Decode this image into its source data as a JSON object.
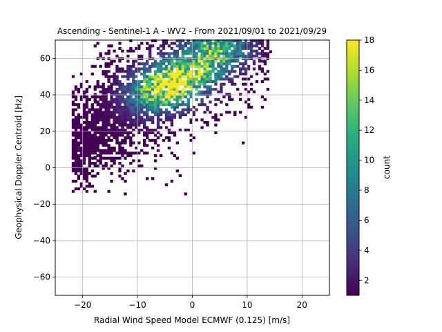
{
  "chart_data": {
    "type": "heatmap",
    "title": "Ascending - Sentinel-1 A - WV2 - From 2021/09/01 to 2021/09/29",
    "xlabel": "Radial Wind Speed Model ECMWF (0.125) [m/s]",
    "ylabel": "Geophysical Doppler Centroid [Hz]",
    "xlim": [
      -25,
      25
    ],
    "ylim": [
      -70,
      70
    ],
    "xticks": [
      -20,
      -10,
      0,
      10,
      20
    ],
    "yticks": [
      -60,
      -40,
      -20,
      0,
      20,
      40,
      60
    ],
    "grid": true,
    "colormap": "viridis",
    "bin_size": {
      "x": 0.5,
      "y": 1.4
    },
    "colorbar": {
      "label": "count",
      "range": [
        1,
        18
      ],
      "ticks": [
        2,
        4,
        6,
        8,
        10,
        12,
        14,
        16,
        18
      ]
    },
    "density_model": {
      "note_visible": false,
      "centers": [
        {
          "x": -6,
          "y": 42,
          "peak": 13
        },
        {
          "x": 4,
          "y": 62,
          "peak": 14
        },
        {
          "x": -2,
          "y": 46,
          "peak": 12
        }
      ],
      "cluster_x_range": [
        -22,
        14
      ],
      "cluster_y_range": [
        -15,
        70
      ]
    }
  }
}
